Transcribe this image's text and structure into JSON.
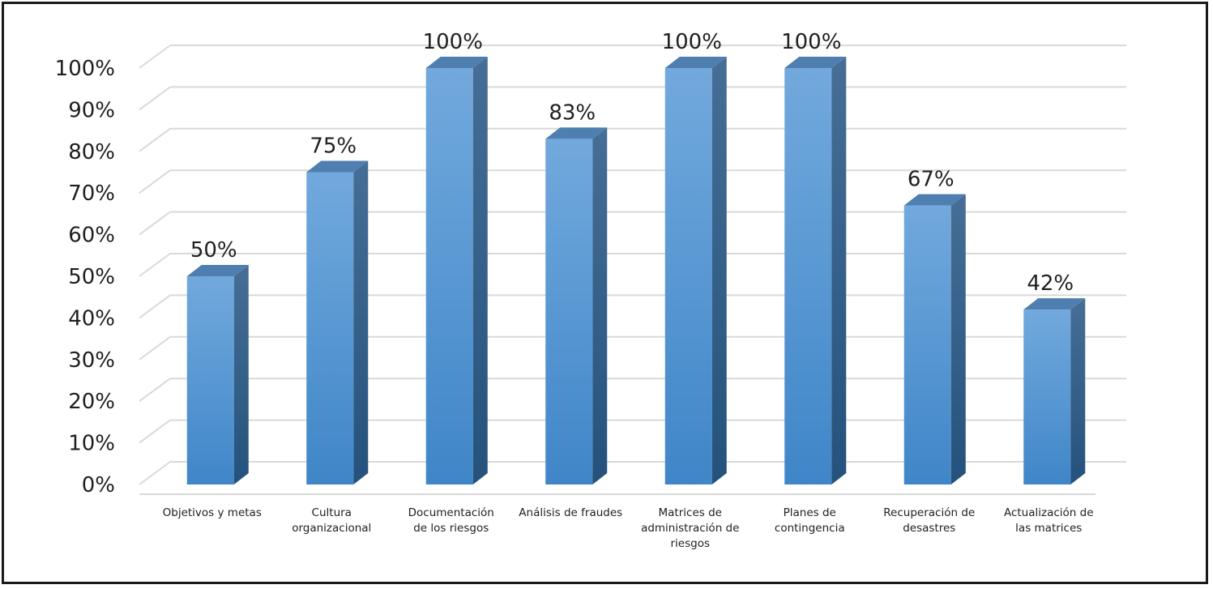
{
  "chart_data": {
    "type": "bar",
    "style": "3d-column",
    "categories": [
      [
        "Objetivos y metas"
      ],
      [
        "Cultura",
        "organizacional"
      ],
      [
        "Documentación",
        "de los riesgos"
      ],
      [
        "Análisis de fraudes"
      ],
      [
        "Matrices de",
        "administración de",
        "riesgos"
      ],
      [
        "Planes de",
        "contingencia"
      ],
      [
        "Recuperación de",
        "desastres"
      ],
      [
        "Actualización de",
        "las matrices"
      ]
    ],
    "values": [
      50,
      75,
      100,
      83,
      100,
      100,
      67,
      42
    ],
    "data_labels": [
      "50%",
      "75%",
      "100%",
      "83%",
      "100%",
      "100%",
      "67%",
      "42%"
    ],
    "y_ticks": [
      "0%",
      "10%",
      "20%",
      "30%",
      "40%",
      "50%",
      "60%",
      "70%",
      "80%",
      "90%",
      "100%"
    ],
    "ylim": [
      0,
      100
    ],
    "grid": true,
    "legend": "none",
    "colors": {
      "bar_front_top": "#72a9dd",
      "bar_front_bottom": "#3f86c8",
      "bar_side": "#2f5d8a",
      "bar_top": "#4f7fb0",
      "grid": "#d9d9d9"
    }
  }
}
